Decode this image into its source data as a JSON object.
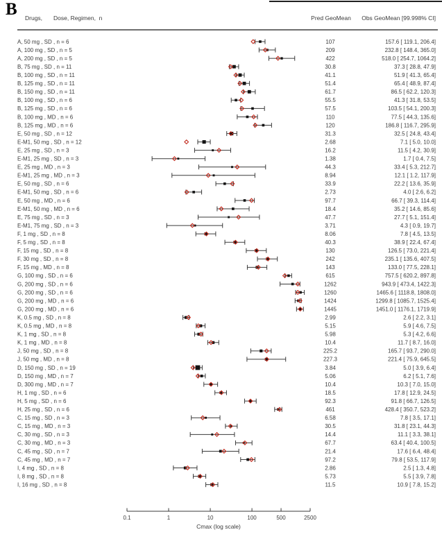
{
  "panel_label": "B",
  "header": {
    "col_drugs": "Drugs,",
    "col_dose": "Dose, Regimen,  n",
    "col_pred": "Pred GeoMean",
    "col_obs": "Obs GeoMean [99.998% CI]"
  },
  "chart_data": {
    "type": "forest",
    "x_scale": "log",
    "xlabel": "Cmax (log scale)",
    "x_ticks": [
      "0.1",
      "1",
      "10",
      "100",
      "500",
      "2500"
    ],
    "x_range": [
      0.1,
      2500
    ],
    "grid": false,
    "colors": {
      "pred_diamond": "#c22a1d",
      "obs_square": "#141414",
      "ci_bar": "#3a3a3a",
      "text": "#3b3b3b"
    },
    "rows": [
      {
        "label": "A,  50 mg , SD ,  n = 6",
        "n": 6,
        "pred": "107",
        "obs": 157.6,
        "lo": 119.1,
        "hi": 206.4
      },
      {
        "label": "A,  100 mg , SD ,  n = 5",
        "n": 5,
        "pred": "209",
        "obs": 232.8,
        "lo": 148.4,
        "hi": 365.0
      },
      {
        "label": "A,  200 mg , SD ,  n = 5",
        "n": 5,
        "pred": "422",
        "obs": 518.0,
        "lo": 254.7,
        "hi": 1064.2
      },
      {
        "label": "B,  75 mg , SD ,  n = 11",
        "n": 11,
        "pred": "30.8",
        "obs": 37.3,
        "lo": 28.8,
        "hi": 47.9
      },
      {
        "label": "B,  100 mg , SD ,  n = 11",
        "n": 11,
        "pred": "41.1",
        "obs": 51.9,
        "lo": 41.3,
        "hi": 65.4
      },
      {
        "label": "B,  125 mg , SD ,  n = 11",
        "n": 11,
        "pred": "51.4",
        "obs": 65.4,
        "lo": 48.9,
        "hi": 87.4
      },
      {
        "label": "B,  150 mg , SD ,  n = 11",
        "n": 11,
        "pred": "61.7",
        "obs": 86.5,
        "lo": 62.2,
        "hi": 120.3
      },
      {
        "label": "B,  100 mg , SD ,  n = 6",
        "n": 6,
        "pred": "55.5",
        "obs": 41.3,
        "lo": 31.8,
        "hi": 53.5
      },
      {
        "label": "B,  125 mg , SD ,  n = 6",
        "n": 6,
        "pred": "57.5",
        "obs": 103.5,
        "lo": 54.1,
        "hi": 200.3
      },
      {
        "label": "B,  100 mg , MD ,  n = 6",
        "n": 6,
        "pred": "110",
        "obs": 77.5,
        "lo": 44.3,
        "hi": 135.6
      },
      {
        "label": "B,  125 mg , MD ,  n = 6",
        "n": 6,
        "pred": "120",
        "obs": 186.8,
        "lo": 116.7,
        "hi": 295.9
      },
      {
        "label": "E,  50 mg , SD ,  n = 12",
        "n": 12,
        "pred": "31.3",
        "obs": 32.5,
        "lo": 24.8,
        "hi": 43.4
      },
      {
        "label": "E-M1,  50 mg , SD ,  n = 12",
        "n": 12,
        "pred": "2.68",
        "obs": 7.1,
        "lo": 5.0,
        "hi": 10.0
      },
      {
        "label": "E,  25 mg , SD ,  n = 3",
        "n": 3,
        "pred": "16.2",
        "obs": 11.5,
        "lo": 4.2,
        "hi": 30.9
      },
      {
        "label": "E-M1,  25 mg , SD ,  n = 3",
        "n": 3,
        "pred": "1.38",
        "obs": 1.7,
        "lo": 0.4,
        "hi": 7.5
      },
      {
        "label": "E,  25 mg , MD ,  n = 3",
        "n": 3,
        "pred": "44.3",
        "obs": 33.4,
        "lo": 5.3,
        "hi": 212.7
      },
      {
        "label": "E-M1,  25 mg , MD ,  n = 3",
        "n": 3,
        "pred": "8.94",
        "obs": 12.1,
        "lo": 1.2,
        "hi": 117.9
      },
      {
        "label": "E,  50 mg , SD ,  n = 6",
        "n": 6,
        "pred": "33.9",
        "obs": 22.2,
        "lo": 13.6,
        "hi": 35.9
      },
      {
        "label": "E-M1,  50 mg , SD ,  n = 6",
        "n": 6,
        "pred": "2.73",
        "obs": 4.0,
        "lo": 2.6,
        "hi": 6.2
      },
      {
        "label": "E,  50 mg , MD ,  n = 6",
        "n": 6,
        "pred": "97.7",
        "obs": 66.7,
        "lo": 39.3,
        "hi": 114.4
      },
      {
        "label": "E-M1,  50 mg , MD ,  n = 6",
        "n": 6,
        "pred": "18.4",
        "obs": 35.2,
        "lo": 14.6,
        "hi": 85.6
      },
      {
        "label": "E,  75 mg , SD ,  n = 3",
        "n": 3,
        "pred": "47.7",
        "obs": 27.7,
        "lo": 5.1,
        "hi": 151.4
      },
      {
        "label": "E-M1,  75 mg , SD ,  n = 3",
        "n": 3,
        "pred": "3.71",
        "obs": 4.3,
        "lo": 0.9,
        "hi": 19.7
      },
      {
        "label": "F,  1 mg , SD ,  n = 8",
        "n": 8,
        "pred": "8.06",
        "obs": 7.8,
        "lo": 4.5,
        "hi": 13.5
      },
      {
        "label": "F,  5 mg , SD ,  n = 8",
        "n": 8,
        "pred": "40.3",
        "obs": 38.9,
        "lo": 22.4,
        "hi": 67.4
      },
      {
        "label": "F,  15 mg , SD ,  n = 8",
        "n": 8,
        "pred": "130",
        "obs": 126.5,
        "lo": 73.0,
        "hi": 221.4
      },
      {
        "label": "F,  30 mg , SD ,  n = 8",
        "n": 8,
        "pred": "242",
        "obs": 235.1,
        "lo": 135.6,
        "hi": 407.5
      },
      {
        "label": "F,  15 mg , MD ,  n = 8",
        "n": 8,
        "pred": "143",
        "obs": 133.0,
        "lo": 77.5,
        "hi": 228.1
      },
      {
        "label": "G,  100 mg , SD ,  n = 6",
        "n": 6,
        "pred": "615",
        "obs": 757.5,
        "lo": 620.2,
        "hi": 897.8
      },
      {
        "label": "G,  200 mg , SD ,  n = 6",
        "n": 6,
        "pred": "1262",
        "obs": 943.9,
        "lo": 473.4,
        "hi": 1422.3
      },
      {
        "label": "G,  200 mg , SD ,  n = 6",
        "n": 6,
        "pred": "1260",
        "obs": 1465.6,
        "lo": 1118.8,
        "hi": 1808.0
      },
      {
        "label": "G,  200 mg , MD ,  n = 6",
        "n": 6,
        "pred": "1424",
        "obs": 1299.8,
        "lo": 1085.7,
        "hi": 1525.4
      },
      {
        "label": "G,  200 mg , MD ,  n = 6",
        "n": 6,
        "pred": "1445",
        "obs": 1451.0,
        "lo": 1176.1,
        "hi": 1719.9
      },
      {
        "label": "K,  0.5 mg , SD ,  n = 8",
        "n": 8,
        "pred": "2.99",
        "obs": 2.6,
        "lo": 2.2,
        "hi": 3.1
      },
      {
        "label": "K,  0.5 mg , MD ,  n = 8",
        "n": 8,
        "pred": "5.15",
        "obs": 5.9,
        "lo": 4.6,
        "hi": 7.5
      },
      {
        "label": "K,  1 mg , SD ,  n = 8",
        "n": 8,
        "pred": "5.98",
        "obs": 5.3,
        "lo": 4.2,
        "hi": 6.6
      },
      {
        "label": "K,  1 mg , MD ,  n = 8",
        "n": 8,
        "pred": "10.4",
        "obs": 11.7,
        "lo": 8.7,
        "hi": 16.0
      },
      {
        "label": "J,  50 mg , SD ,  n = 8",
        "n": 8,
        "pred": "225.2",
        "obs": 165.7,
        "lo": 93.7,
        "hi": 290.0
      },
      {
        "label": "J,  50 mg , MD ,  n = 8",
        "n": 8,
        "pred": "227.3",
        "obs": 221.4,
        "lo": 75.9,
        "hi": 645.5
      },
      {
        "label": "D,  150 mg , SD ,  n = 19",
        "n": 19,
        "pred": "3.84",
        "obs": 5.0,
        "lo": 3.9,
        "hi": 6.4
      },
      {
        "label": "D,  150 mg , MD ,  n = 7",
        "n": 7,
        "pred": "5.06",
        "obs": 6.2,
        "lo": 5.1,
        "hi": 7.6
      },
      {
        "label": "D,  300 mg , MD ,  n = 7",
        "n": 7,
        "pred": "10.4",
        "obs": 10.3,
        "lo": 7.0,
        "hi": 15.0
      },
      {
        "label": "H,  1 mg , SD ,  n = 6",
        "n": 6,
        "pred": "18.5",
        "obs": 17.8,
        "lo": 12.9,
        "hi": 24.5
      },
      {
        "label": "H,  5 mg , SD ,  n = 6",
        "n": 6,
        "pred": "92.3",
        "obs": 91.8,
        "lo": 66.7,
        "hi": 126.5
      },
      {
        "label": "H,  25 mg , SD ,  n = 6",
        "n": 6,
        "pred": "461",
        "obs": 428.4,
        "lo": 350.7,
        "hi": 523.2
      },
      {
        "label": "C,  15 mg , SD ,  n = 3",
        "n": 3,
        "pred": "6.58",
        "obs": 7.8,
        "lo": 3.5,
        "hi": 17.1
      },
      {
        "label": "C,  15 mg , MD ,  n = 3",
        "n": 3,
        "pred": "30.5",
        "obs": 31.8,
        "lo": 23.1,
        "hi": 44.3
      },
      {
        "label": "C,  30 mg , SD ,  n = 3",
        "n": 3,
        "pred": "14.4",
        "obs": 11.1,
        "lo": 3.3,
        "hi": 38.1
      },
      {
        "label": "C,  30 mg , MD ,  n = 3",
        "n": 3,
        "pred": "67.7",
        "obs": 63.4,
        "lo": 40.4,
        "hi": 100.5
      },
      {
        "label": "C,  45 mg , SD ,  n = 7",
        "n": 7,
        "pred": "21.4",
        "obs": 17.6,
        "lo": 6.4,
        "hi": 48.4
      },
      {
        "label": "C,  45 mg , MD ,  n = 7",
        "n": 7,
        "pred": "97.2",
        "obs": 79.8,
        "lo": 53.5,
        "hi": 117.9
      },
      {
        "label": "I,  4 mg , SD ,  n = 8",
        "n": 8,
        "pred": "2.86",
        "obs": 2.5,
        "lo": 1.3,
        "hi": 4.8
      },
      {
        "label": "I,  8 mg , SD ,  n = 8",
        "n": 8,
        "pred": "5.73",
        "obs": 5.5,
        "lo": 3.9,
        "hi": 7.8
      },
      {
        "label": "I,  16 mg , SD ,  n = 8",
        "n": 8,
        "pred": "11.5",
        "obs": 10.9,
        "lo": 7.8,
        "hi": 15.2
      }
    ]
  }
}
